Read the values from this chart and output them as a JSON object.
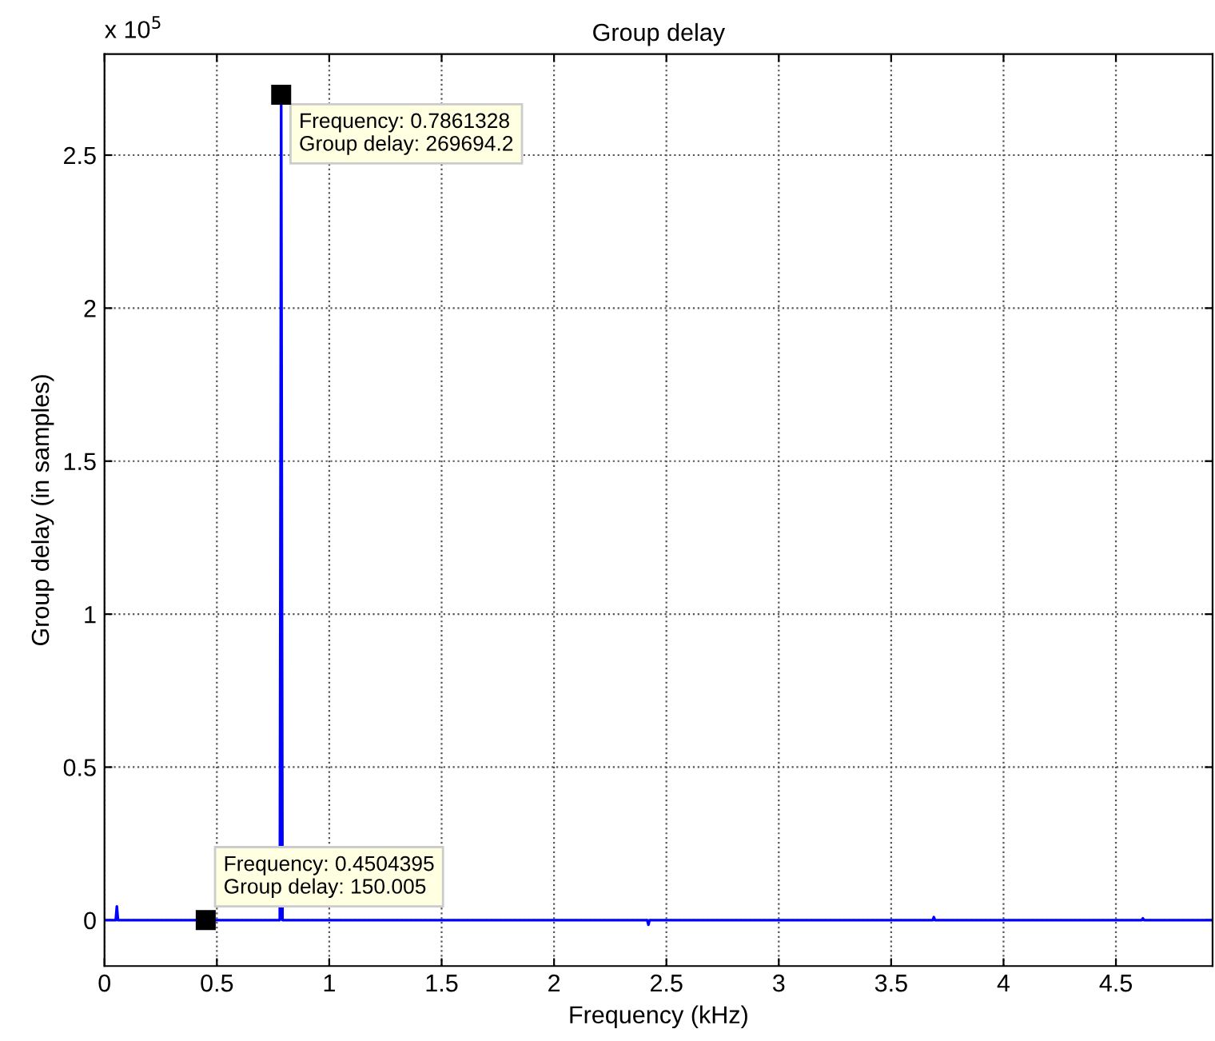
{
  "chart_data": {
    "type": "line",
    "title": "Group delay",
    "xlabel": "Frequency (kHz)",
    "ylabel": "Group delay (in samples)",
    "series": [
      {
        "color": "#0000ff",
        "x": [
          0,
          0.05,
          0.055,
          0.06,
          0.3,
          0.4504395,
          0.78,
          0.7861328,
          0.792,
          1.5,
          2.415,
          2.42,
          2.425,
          3.685,
          3.69,
          3.695,
          4.615,
          4.62,
          4.625,
          4.93
        ],
        "values": [
          0,
          0,
          0.045,
          0,
          0,
          0,
          0,
          2.697,
          0,
          0,
          0,
          -0.015,
          0,
          0,
          0.01,
          0,
          0,
          0.006,
          0,
          0
        ]
      }
    ],
    "xlim": [
      0,
      4.93
    ],
    "xticks": [
      0,
      0.5,
      1,
      1.5,
      2,
      2.5,
      3,
      3.5,
      4,
      4.5
    ],
    "ylim": [
      -0.15,
      2.83
    ],
    "yticks": [
      0,
      0.5,
      1,
      1.5,
      2,
      2.5
    ],
    "grid": true,
    "line_style": "solid",
    "marker": "none",
    "annotations": [
      "x 10$^{5}$",
      {
        "text": "Frequency: 0.7861328\nGroup delay: 269694.2",
        "x": 0.7861328,
        "y": 2.697
      },
      {
        "text": "Frequency: 0.4504395\nGroup delay: 150.005",
        "x": 0.4504395,
        "y": 0
      }
    ]
  }
}
